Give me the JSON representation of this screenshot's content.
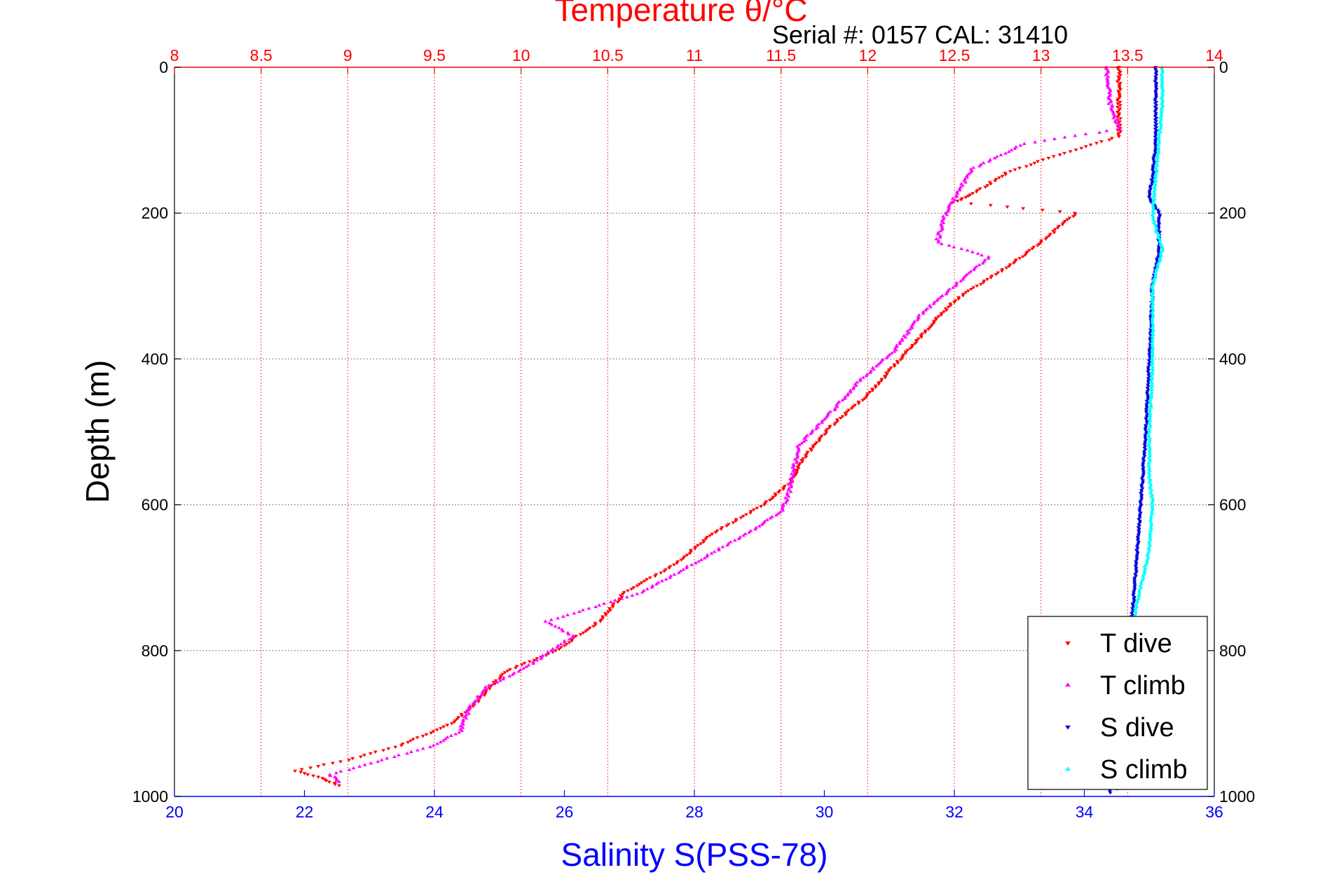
{
  "chart_data": {
    "type": "scatter",
    "title": "Temperature θ/°C",
    "subtitle": "Serial #: 0157  CAL: 31410",
    "ylabel": "Depth (m)",
    "xlabel_bottom": "Salinity S(PSS-78)",
    "xlabel_top": "Temperature θ/°C",
    "ylim": [
      0,
      1000
    ],
    "y_reversed": true,
    "y_ticks": [
      "0",
      "200",
      "400",
      "600",
      "800",
      "1000"
    ],
    "y_tick_values": [
      0,
      200,
      400,
      600,
      800,
      1000
    ],
    "x_top_lim": [
      8,
      14
    ],
    "x_top_ticks": [
      "8",
      "8.5",
      "9",
      "9.5",
      "10",
      "10.5",
      "11",
      "11.5",
      "12",
      "12.5",
      "13",
      "13.5",
      "14"
    ],
    "x_top_tick_values": [
      8,
      8.5,
      9,
      9.5,
      10,
      10.5,
      11,
      11.5,
      12,
      12.5,
      13,
      13.5,
      14
    ],
    "x_bottom_lim": [
      20,
      36
    ],
    "x_bottom_ticks": [
      "20",
      "22",
      "24",
      "26",
      "28",
      "30",
      "32",
      "34",
      "36"
    ],
    "x_bottom_tick_values": [
      20,
      22,
      24,
      26,
      28,
      30,
      32,
      34,
      36
    ],
    "grid": true,
    "legend_position": "bottom-right",
    "colors": {
      "t_dive": "#ff0000",
      "t_climb": "#ff00ff",
      "s_dive": "#0000dd",
      "s_climb": "#00ffff",
      "top_axis": "#ff0000",
      "bottom_axis": "#0000ff"
    },
    "series": [
      {
        "name": "T dive",
        "axis": "temperature",
        "marker": "triangle-down",
        "points": [
          [
            13.45,
            0
          ],
          [
            13.45,
            50
          ],
          [
            13.45,
            95
          ],
          [
            13.1,
            120
          ],
          [
            12.8,
            145
          ],
          [
            12.6,
            175
          ],
          [
            12.5,
            185
          ],
          [
            13.2,
            200
          ],
          [
            13.0,
            240
          ],
          [
            12.8,
            275
          ],
          [
            12.5,
            320
          ],
          [
            12.3,
            370
          ],
          [
            12.15,
            410
          ],
          [
            12.0,
            450
          ],
          [
            11.8,
            490
          ],
          [
            11.65,
            530
          ],
          [
            11.55,
            570
          ],
          [
            11.4,
            600
          ],
          [
            11.1,
            640
          ],
          [
            10.9,
            680
          ],
          [
            10.6,
            720
          ],
          [
            10.45,
            760
          ],
          [
            10.2,
            800
          ],
          [
            9.9,
            830
          ],
          [
            9.75,
            870
          ],
          [
            9.6,
            900
          ],
          [
            9.3,
            930
          ],
          [
            9.0,
            950
          ],
          [
            8.7,
            965
          ],
          [
            8.85,
            975
          ],
          [
            8.95,
            985
          ]
        ]
      },
      {
        "name": "T climb",
        "axis": "temperature",
        "marker": "triangle-up",
        "points": [
          [
            13.38,
            0
          ],
          [
            13.4,
            50
          ],
          [
            13.45,
            85
          ],
          [
            12.9,
            105
          ],
          [
            12.6,
            140
          ],
          [
            12.5,
            180
          ],
          [
            12.45,
            200
          ],
          [
            12.4,
            240
          ],
          [
            12.7,
            260
          ],
          [
            12.5,
            300
          ],
          [
            12.3,
            340
          ],
          [
            12.15,
            390
          ],
          [
            11.95,
            430
          ],
          [
            11.8,
            470
          ],
          [
            11.6,
            520
          ],
          [
            11.55,
            580
          ],
          [
            11.5,
            610
          ],
          [
            11.3,
            640
          ],
          [
            11.0,
            680
          ],
          [
            10.7,
            720
          ],
          [
            10.15,
            760
          ],
          [
            10.3,
            780
          ],
          [
            10.05,
            820
          ],
          [
            9.8,
            850
          ],
          [
            9.7,
            880
          ],
          [
            9.65,
            910
          ],
          [
            9.5,
            930
          ],
          [
            9.2,
            950
          ],
          [
            8.9,
            970
          ],
          [
            8.95,
            980
          ]
        ]
      },
      {
        "name": "S dive",
        "axis": "salinity",
        "marker": "triangle-down",
        "points": [
          [
            35.1,
            0
          ],
          [
            35.1,
            50
          ],
          [
            35.1,
            100
          ],
          [
            35.05,
            150
          ],
          [
            35.0,
            180
          ],
          [
            35.15,
            200
          ],
          [
            35.15,
            250
          ],
          [
            35.05,
            300
          ],
          [
            35.0,
            400
          ],
          [
            34.95,
            500
          ],
          [
            34.9,
            560
          ],
          [
            34.85,
            620
          ],
          [
            34.8,
            680
          ],
          [
            34.75,
            740
          ],
          [
            34.65,
            800
          ],
          [
            34.6,
            870
          ],
          [
            34.5,
            930
          ],
          [
            34.4,
            995
          ]
        ]
      },
      {
        "name": "S climb",
        "axis": "salinity",
        "marker": "triangle-up",
        "points": [
          [
            35.2,
            0
          ],
          [
            35.2,
            50
          ],
          [
            35.15,
            100
          ],
          [
            35.1,
            150
          ],
          [
            35.05,
            200
          ],
          [
            35.1,
            220
          ],
          [
            35.2,
            250
          ],
          [
            35.05,
            300
          ],
          [
            35.05,
            400
          ],
          [
            35.0,
            500
          ],
          [
            35.0,
            560
          ],
          [
            35.05,
            600
          ],
          [
            35.0,
            660
          ],
          [
            34.8,
            740
          ],
          [
            34.7,
            800
          ],
          [
            34.6,
            900
          ],
          [
            34.5,
            990
          ]
        ]
      }
    ],
    "legend": [
      "T dive",
      "T climb",
      "S dive",
      "S climb"
    ]
  }
}
